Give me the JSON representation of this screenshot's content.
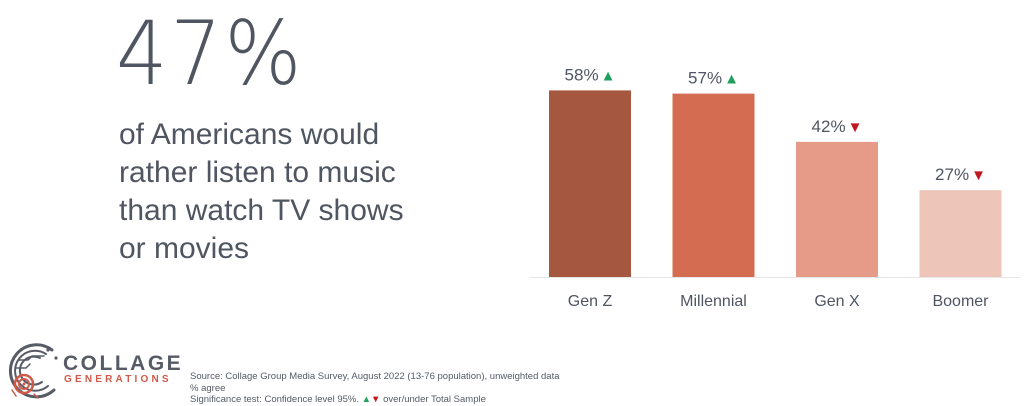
{
  "headline": {
    "stat": "47%",
    "text": "of Americans would rather listen to music than watch TV shows or movies"
  },
  "chart_data": {
    "type": "bar",
    "categories": [
      "Gen Z",
      "Millennial",
      "Gen X",
      "Boomer"
    ],
    "values": [
      58,
      57,
      42,
      27
    ],
    "labels": [
      "58%",
      "57%",
      "42%",
      "27%"
    ],
    "significance": [
      "up",
      "up",
      "down",
      "down"
    ],
    "colors": [
      "#a5573f",
      "#d36c51",
      "#e59b88",
      "#eec5b9"
    ],
    "ylim": [
      0,
      60
    ],
    "grid": false,
    "title": "",
    "xlabel": "",
    "ylabel": ""
  },
  "colors": {
    "up": "#1ea05a",
    "down": "#c0161c",
    "text": "#4f5561",
    "brand_accent": "#d05a4a"
  },
  "logo": {
    "word": "COLLAGE",
    "sub": "GENERATIONS"
  },
  "footnote": {
    "source": "Source: Collage Group Media Survey, August 2022 (13-76 population), unweighted data",
    "measure": "% agree",
    "sig_text": "Significance test: Confidence level 95%.",
    "sig_suffix": "over/under Total Sample",
    "up_icon": "triangle-up-icon",
    "down_icon": "triangle-down-icon"
  }
}
